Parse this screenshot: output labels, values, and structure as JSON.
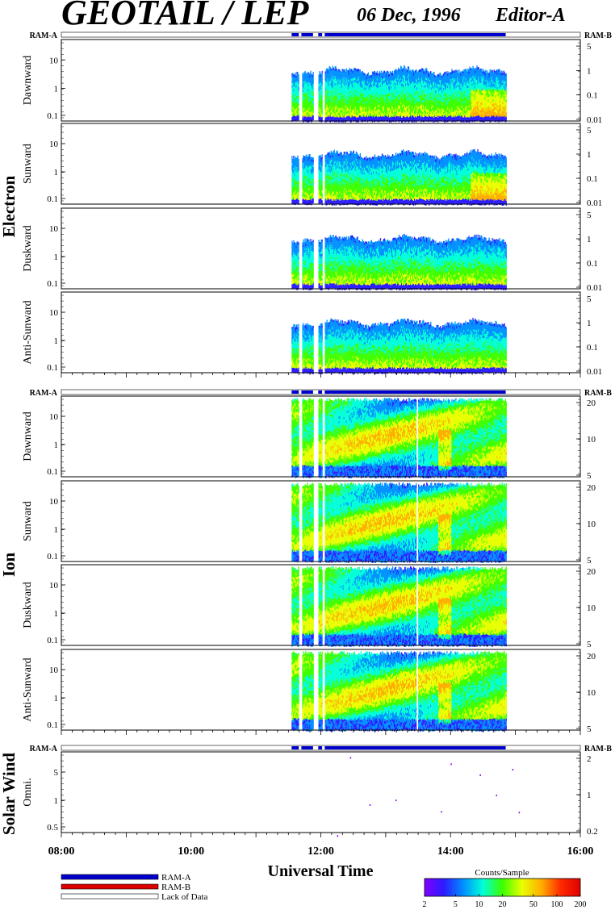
{
  "header": {
    "title": "GEOTAIL / LEP",
    "date": "06 Dec, 1996",
    "editor": "Editor-A"
  },
  "groups": {
    "electron": "Electron",
    "ion": "Ion",
    "solar_wind": "Solar Wind"
  },
  "bar_labels": {
    "left": "RAM-A",
    "right": "RAM-B"
  },
  "panels": [
    {
      "label": "Dawnward",
      "group": "electron",
      "left_ticks": [
        "10",
        "1",
        "0.1"
      ],
      "right_ticks": [
        "5",
        "1",
        "0.1",
        "0.01"
      ]
    },
    {
      "label": "Sunward",
      "group": "electron",
      "left_ticks": [
        "10",
        "1",
        "0.1"
      ],
      "right_ticks": [
        "5",
        "1",
        "0.1",
        "0.01"
      ]
    },
    {
      "label": "Duskward",
      "group": "electron",
      "left_ticks": [
        "10",
        "1",
        "0.1"
      ],
      "right_ticks": [
        "5",
        "1",
        "0.1",
        "0.01"
      ]
    },
    {
      "label": "Anti-Sunward",
      "group": "electron",
      "left_ticks": [
        "10",
        "1",
        "0.1"
      ],
      "right_ticks": [
        "5",
        "1",
        "0.1",
        "0.01"
      ]
    },
    {
      "label": "Dawnward",
      "group": "ion",
      "left_ticks": [
        "10",
        "1",
        "0.1"
      ],
      "right_ticks": [
        "20",
        "10",
        "5"
      ]
    },
    {
      "label": "Sunward",
      "group": "ion",
      "left_ticks": [
        "10",
        "1",
        "0.1"
      ],
      "right_ticks": [
        "20",
        "10",
        "5"
      ]
    },
    {
      "label": "Duskward",
      "group": "ion",
      "left_ticks": [
        "10",
        "1",
        "0.1"
      ],
      "right_ticks": [
        "20",
        "10",
        "5"
      ]
    },
    {
      "label": "Anti-Sunward",
      "group": "ion",
      "left_ticks": [
        "10",
        "1",
        "0.1"
      ],
      "right_ticks": [
        "20",
        "10",
        "5"
      ]
    },
    {
      "label": "Omni.",
      "group": "solar_wind",
      "left_ticks": [
        "5",
        "1",
        "0.5"
      ],
      "right_ticks": [
        "2",
        "1",
        "0.2"
      ]
    }
  ],
  "chart_data": {
    "type": "heatmap",
    "xlabel": "Universal Time",
    "x_ticks": [
      "08:00",
      "10:00",
      "12:00",
      "14:00",
      "16:00"
    ],
    "x_range_hours": [
      8,
      16
    ],
    "data_interval_hours": [
      11.55,
      14.85
    ],
    "gap_intervals_hours": [
      [
        11.66,
        11.7
      ],
      [
        11.88,
        11.96
      ],
      [
        12.02,
        12.06
      ]
    ],
    "ion_gap_hours": 13.48,
    "colorbar": {
      "title": "Counts/Sample",
      "ticks": [
        "2",
        "5",
        "10",
        "20",
        "50",
        "100",
        "200"
      ],
      "range": [
        2,
        200
      ],
      "scale": "log",
      "colors": [
        "#7f00ff",
        "#2b1cff",
        "#0090ff",
        "#00ffd8",
        "#3cff00",
        "#e8ff00",
        "#ffae00",
        "#ff2a00",
        "#e00000"
      ]
    },
    "legend": [
      {
        "label": "RAM-A",
        "color": "#0000cc"
      },
      {
        "label": "RAM-B",
        "color": "#dd0000"
      },
      {
        "label": "Lack of Data",
        "color": "#ffffff"
      }
    ],
    "solar_wind_points": [
      {
        "t": 12.45,
        "v": 6.5
      },
      {
        "t": 12.25,
        "v": 0.27
      },
      {
        "t": 12.75,
        "v": 0.95
      },
      {
        "t": 13.15,
        "v": 1.15
      },
      {
        "t": 13.85,
        "v": 0.72
      },
      {
        "t": 14.0,
        "v": 5.0
      },
      {
        "t": 14.45,
        "v": 3.2
      },
      {
        "t": 14.7,
        "v": 1.4
      },
      {
        "t": 14.95,
        "v": 4.0
      },
      {
        "t": 15.05,
        "v": 0.7
      }
    ]
  }
}
